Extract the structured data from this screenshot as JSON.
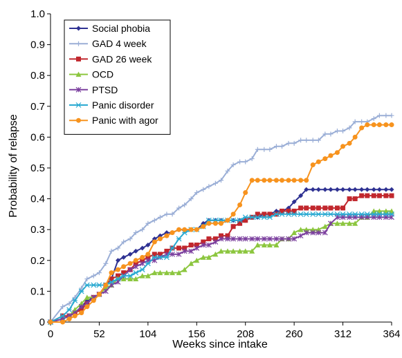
{
  "chart_data": {
    "type": "line",
    "xlabel": "Weeks since intake",
    "ylabel": "Probability of relapse",
    "xlim": [
      0,
      364
    ],
    "ylim": [
      0,
      1.0
    ],
    "xticks": [
      0,
      52,
      104,
      156,
      208,
      260,
      312,
      364
    ],
    "yticks": [
      0,
      0.1,
      0.2,
      0.3,
      0.4,
      0.5,
      0.6,
      0.7,
      0.8,
      0.9,
      1.0
    ],
    "ytick_labels": [
      "0",
      "0.1",
      "0.2",
      "0.3",
      "0.4",
      "0.5",
      "0.6",
      "0.7",
      "0.8",
      "0.9",
      "1.0"
    ],
    "grid": false,
    "legend_position": "top-left",
    "series": [
      {
        "name": "Social phobia",
        "color": "#2e3192",
        "marker": "diamond",
        "x": [
          0,
          13,
          20,
          26,
          33,
          39,
          46,
          52,
          59,
          65,
          72,
          78,
          85,
          91,
          98,
          104,
          111,
          117,
          124,
          130,
          137,
          143,
          150,
          156,
          163,
          169,
          176,
          182,
          189,
          195,
          202,
          208,
          215,
          221,
          228,
          234,
          241,
          247,
          254,
          260,
          267,
          273,
          280,
          286,
          293,
          299,
          306,
          312,
          319,
          325,
          332,
          338,
          345,
          351,
          358,
          364
        ],
        "y": [
          0,
          0.01,
          0.02,
          0.03,
          0.05,
          0.07,
          0.08,
          0.09,
          0.12,
          0.14,
          0.2,
          0.21,
          0.22,
          0.23,
          0.24,
          0.25,
          0.27,
          0.28,
          0.29,
          0.29,
          0.3,
          0.3,
          0.3,
          0.3,
          0.32,
          0.33,
          0.33,
          0.33,
          0.33,
          0.33,
          0.33,
          0.33,
          0.34,
          0.34,
          0.35,
          0.35,
          0.36,
          0.36,
          0.37,
          0.39,
          0.41,
          0.43,
          0.43,
          0.43,
          0.43,
          0.43,
          0.43,
          0.43,
          0.43,
          0.43,
          0.43,
          0.43,
          0.43,
          0.43,
          0.43,
          0.43
        ]
      },
      {
        "name": "GAD 4 week",
        "color": "#9aaed6",
        "marker": "plus",
        "x": [
          0,
          13,
          20,
          26,
          33,
          39,
          46,
          52,
          59,
          65,
          72,
          78,
          85,
          91,
          98,
          104,
          111,
          117,
          124,
          130,
          137,
          143,
          150,
          156,
          163,
          169,
          176,
          182,
          189,
          195,
          202,
          208,
          215,
          221,
          228,
          234,
          241,
          247,
          254,
          260,
          267,
          273,
          280,
          286,
          293,
          299,
          306,
          312,
          319,
          325,
          332,
          338,
          345,
          351,
          358,
          364
        ],
        "y": [
          0,
          0.05,
          0.06,
          0.08,
          0.11,
          0.14,
          0.15,
          0.16,
          0.19,
          0.23,
          0.24,
          0.26,
          0.27,
          0.29,
          0.3,
          0.32,
          0.33,
          0.34,
          0.35,
          0.35,
          0.37,
          0.38,
          0.4,
          0.42,
          0.43,
          0.44,
          0.45,
          0.46,
          0.49,
          0.51,
          0.52,
          0.52,
          0.53,
          0.56,
          0.56,
          0.56,
          0.57,
          0.57,
          0.58,
          0.58,
          0.59,
          0.59,
          0.59,
          0.59,
          0.61,
          0.61,
          0.62,
          0.62,
          0.63,
          0.65,
          0.65,
          0.65,
          0.66,
          0.67,
          0.67,
          0.67
        ]
      },
      {
        "name": "GAD 26 week",
        "color": "#c1272d",
        "marker": "square",
        "x": [
          0,
          13,
          20,
          26,
          33,
          39,
          46,
          52,
          59,
          65,
          72,
          78,
          85,
          91,
          98,
          104,
          111,
          117,
          124,
          130,
          137,
          143,
          150,
          156,
          163,
          169,
          176,
          182,
          189,
          195,
          202,
          208,
          215,
          221,
          228,
          234,
          241,
          247,
          254,
          260,
          267,
          273,
          280,
          286,
          293,
          299,
          306,
          312,
          319,
          325,
          332,
          338,
          345,
          351,
          358,
          364
        ],
        "y": [
          0,
          0.02,
          0.02,
          0.03,
          0.04,
          0.06,
          0.08,
          0.09,
          0.12,
          0.14,
          0.15,
          0.16,
          0.17,
          0.19,
          0.2,
          0.21,
          0.22,
          0.22,
          0.23,
          0.24,
          0.24,
          0.24,
          0.25,
          0.25,
          0.26,
          0.27,
          0.27,
          0.28,
          0.28,
          0.31,
          0.32,
          0.33,
          0.34,
          0.35,
          0.35,
          0.35,
          0.35,
          0.36,
          0.36,
          0.36,
          0.37,
          0.37,
          0.37,
          0.37,
          0.37,
          0.37,
          0.37,
          0.37,
          0.4,
          0.4,
          0.41,
          0.41,
          0.41,
          0.41,
          0.41,
          0.41
        ]
      },
      {
        "name": "OCD",
        "color": "#8cc63f",
        "marker": "triangle",
        "x": [
          0,
          13,
          20,
          26,
          33,
          39,
          46,
          52,
          59,
          65,
          72,
          78,
          85,
          91,
          98,
          104,
          111,
          117,
          124,
          130,
          137,
          143,
          150,
          156,
          163,
          169,
          176,
          182,
          189,
          195,
          202,
          208,
          215,
          221,
          228,
          234,
          241,
          247,
          254,
          260,
          267,
          273,
          280,
          286,
          293,
          299,
          306,
          312,
          319,
          325,
          332,
          338,
          345,
          351,
          358,
          364
        ],
        "y": [
          0,
          0.01,
          0.02,
          0.04,
          0.06,
          0.08,
          0.08,
          0.09,
          0.11,
          0.12,
          0.14,
          0.14,
          0.14,
          0.14,
          0.15,
          0.15,
          0.16,
          0.16,
          0.16,
          0.16,
          0.16,
          0.17,
          0.19,
          0.2,
          0.21,
          0.21,
          0.22,
          0.23,
          0.23,
          0.23,
          0.23,
          0.23,
          0.23,
          0.25,
          0.25,
          0.25,
          0.25,
          0.27,
          0.27,
          0.29,
          0.3,
          0.3,
          0.3,
          0.3,
          0.31,
          0.32,
          0.32,
          0.32,
          0.32,
          0.32,
          0.34,
          0.34,
          0.36,
          0.36,
          0.36,
          0.36
        ]
      },
      {
        "name": "PTSD",
        "color": "#7b3f9e",
        "marker": "star",
        "x": [
          0,
          13,
          20,
          26,
          33,
          39,
          46,
          52,
          59,
          65,
          72,
          78,
          85,
          91,
          98,
          104,
          111,
          117,
          124,
          130,
          137,
          143,
          150,
          156,
          163,
          169,
          176,
          182,
          189,
          195,
          202,
          208,
          215,
          221,
          228,
          234,
          241,
          247,
          254,
          260,
          267,
          273,
          280,
          286,
          293,
          299,
          306,
          312,
          319,
          325,
          332,
          338,
          345,
          351,
          358,
          364
        ],
        "y": [
          0,
          0.01,
          0.02,
          0.03,
          0.05,
          0.06,
          0.08,
          0.09,
          0.1,
          0.12,
          0.13,
          0.15,
          0.17,
          0.18,
          0.19,
          0.2,
          0.2,
          0.21,
          0.22,
          0.22,
          0.22,
          0.23,
          0.23,
          0.24,
          0.25,
          0.25,
          0.26,
          0.27,
          0.27,
          0.27,
          0.27,
          0.27,
          0.27,
          0.27,
          0.27,
          0.27,
          0.27,
          0.27,
          0.27,
          0.27,
          0.28,
          0.29,
          0.29,
          0.29,
          0.29,
          0.32,
          0.34,
          0.34,
          0.34,
          0.34,
          0.34,
          0.34,
          0.34,
          0.34,
          0.34,
          0.34
        ]
      },
      {
        "name": "Panic disorder",
        "color": "#29a9d1",
        "marker": "asterisk",
        "x": [
          0,
          13,
          20,
          26,
          33,
          39,
          46,
          52,
          59,
          65,
          72,
          78,
          85,
          91,
          98,
          104,
          111,
          117,
          124,
          130,
          137,
          143,
          150,
          156,
          163,
          169,
          176,
          182,
          189,
          195,
          202,
          208,
          215,
          221,
          228,
          234,
          241,
          247,
          254,
          260,
          267,
          273,
          280,
          286,
          293,
          299,
          306,
          312,
          319,
          325,
          332,
          338,
          345,
          351,
          358,
          364
        ],
        "y": [
          0,
          0.02,
          0.04,
          0.07,
          0.1,
          0.12,
          0.12,
          0.12,
          0.12,
          0.13,
          0.14,
          0.15,
          0.15,
          0.16,
          0.17,
          0.19,
          0.21,
          0.21,
          0.21,
          0.24,
          0.27,
          0.29,
          0.3,
          0.3,
          0.31,
          0.33,
          0.33,
          0.33,
          0.33,
          0.33,
          0.33,
          0.34,
          0.34,
          0.34,
          0.34,
          0.34,
          0.35,
          0.35,
          0.35,
          0.35,
          0.35,
          0.35,
          0.35,
          0.35,
          0.35,
          0.35,
          0.35,
          0.35,
          0.35,
          0.35,
          0.35,
          0.35,
          0.35,
          0.35,
          0.35,
          0.35
        ]
      },
      {
        "name": "Panic with agor",
        "color": "#f7931e",
        "marker": "circle",
        "x": [
          0,
          13,
          20,
          26,
          33,
          39,
          46,
          52,
          59,
          65,
          72,
          78,
          85,
          91,
          98,
          104,
          111,
          117,
          124,
          130,
          137,
          143,
          150,
          156,
          163,
          169,
          176,
          182,
          189,
          195,
          202,
          208,
          215,
          221,
          228,
          234,
          241,
          247,
          254,
          260,
          267,
          273,
          280,
          286,
          293,
          299,
          306,
          312,
          319,
          325,
          332,
          338,
          345,
          351,
          358,
          364
        ],
        "y": [
          0,
          0.0,
          0.01,
          0.02,
          0.03,
          0.05,
          0.07,
          0.09,
          0.12,
          0.16,
          0.17,
          0.18,
          0.19,
          0.2,
          0.21,
          0.22,
          0.26,
          0.27,
          0.28,
          0.29,
          0.3,
          0.3,
          0.3,
          0.3,
          0.31,
          0.32,
          0.32,
          0.32,
          0.33,
          0.35,
          0.38,
          0.42,
          0.46,
          0.46,
          0.46,
          0.46,
          0.46,
          0.46,
          0.46,
          0.46,
          0.46,
          0.46,
          0.51,
          0.52,
          0.53,
          0.54,
          0.55,
          0.57,
          0.58,
          0.6,
          0.63,
          0.64,
          0.64,
          0.64,
          0.64,
          0.64
        ]
      }
    ]
  }
}
